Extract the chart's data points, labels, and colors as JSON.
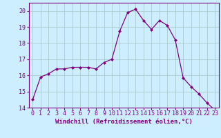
{
  "hours": [
    0,
    1,
    2,
    3,
    4,
    5,
    6,
    7,
    8,
    9,
    10,
    11,
    12,
    13,
    14,
    15,
    16,
    17,
    18,
    19,
    20,
    21,
    22,
    23
  ],
  "temps": [
    14.5,
    15.9,
    16.1,
    16.4,
    16.4,
    16.5,
    16.5,
    16.5,
    16.4,
    16.8,
    17.0,
    18.75,
    19.9,
    20.1,
    19.4,
    18.85,
    19.4,
    19.1,
    18.2,
    15.85,
    15.3,
    14.85,
    14.3,
    13.85
  ],
  "line_color": "#800080",
  "marker_color": "#800080",
  "bg_color": "#cceeff",
  "grid_color": "#aacccc",
  "axis_color": "#800080",
  "xlabel": "Windchill (Refroidissement éolien,°C)",
  "ylim": [
    14.0,
    20.5
  ],
  "xlim": [
    -0.5,
    23.5
  ],
  "yticks": [
    14,
    15,
    16,
    17,
    18,
    19,
    20
  ],
  "xticks": [
    0,
    1,
    2,
    3,
    4,
    5,
    6,
    7,
    8,
    9,
    10,
    11,
    12,
    13,
    14,
    15,
    16,
    17,
    18,
    19,
    20,
    21,
    22,
    23
  ],
  "tick_fontsize": 6.0,
  "xlabel_fontsize": 6.5
}
